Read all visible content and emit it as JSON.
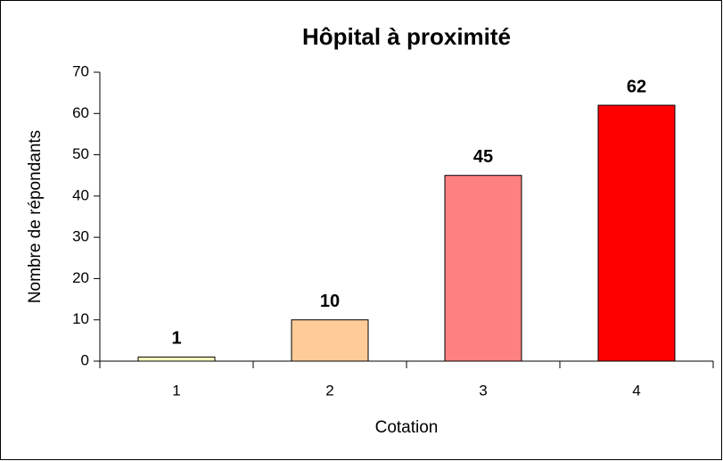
{
  "chart_data": {
    "type": "bar",
    "title": "Hôpital à proximité",
    "x_label": "Cotation",
    "y_label": "Nombre de répondants",
    "categories": [
      "1",
      "2",
      "3",
      "4"
    ],
    "values": [
      1,
      10,
      45,
      62
    ],
    "colors": [
      "#ffffc0",
      "#ffcc99",
      "#ff8080",
      "#ff0000"
    ],
    "ylim": [
      0,
      70
    ],
    "yticks": [
      0,
      10,
      20,
      30,
      40,
      50,
      60,
      70
    ],
    "grid": false,
    "data_labels": true
  }
}
